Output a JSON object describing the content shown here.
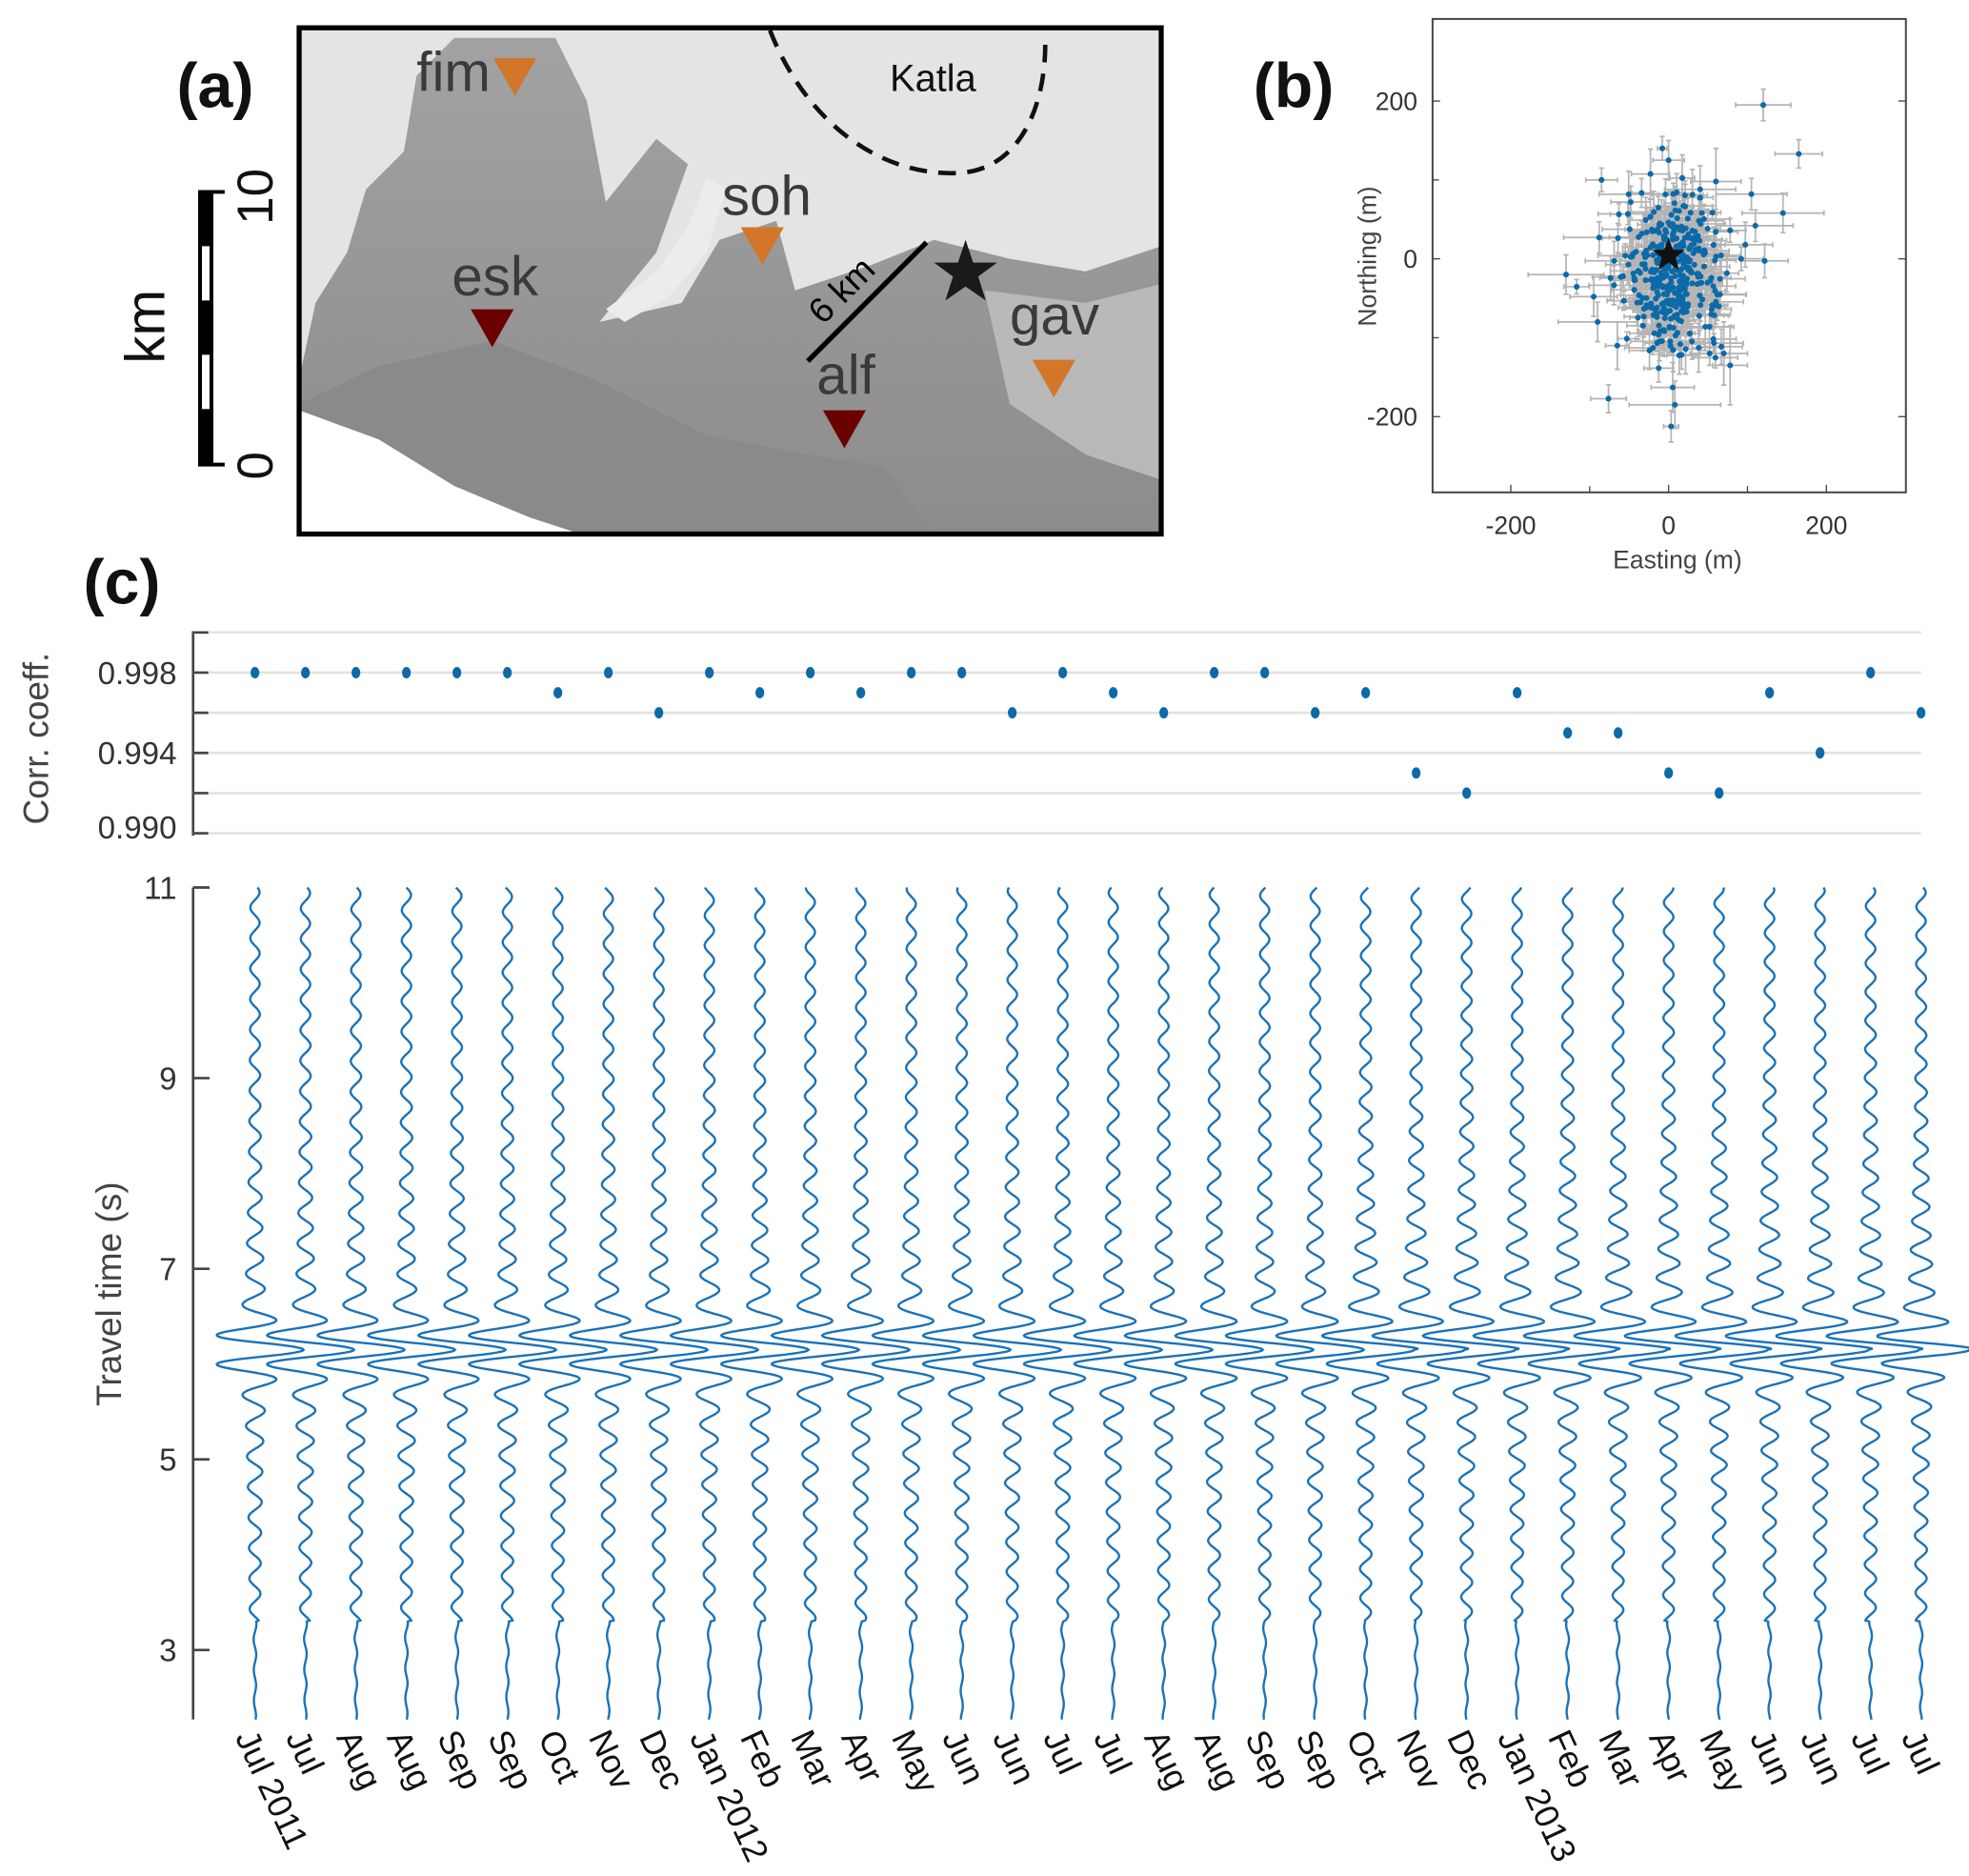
{
  "panels": {
    "a": "(a)",
    "b": "(b)",
    "c": "(c)"
  },
  "map": {
    "scale_bar": {
      "unit": "km",
      "top_label": "10",
      "bottom_label": "0"
    },
    "volcano_label": "Katla",
    "distance_label": "6 km",
    "stations": [
      {
        "name": "fim",
        "color": "#d2772a"
      },
      {
        "name": "soh",
        "color": "#d2772a"
      },
      {
        "name": "esk",
        "color": "#6b0000"
      },
      {
        "name": "alf",
        "color": "#6b0000"
      },
      {
        "name": "gav",
        "color": "#d2772a"
      }
    ]
  },
  "chart_data": [
    {
      "type": "scatter",
      "panel": "b",
      "xlabel": "Easting (m)",
      "ylabel": "Northing (m)",
      "xlim": [
        -300,
        300
      ],
      "ylim": [
        -300,
        300
      ],
      "xticks": [
        "-200",
        "0",
        "200"
      ],
      "yticks": [
        "-200",
        "0",
        "200"
      ],
      "marker_color": "#0b6aa8",
      "errorbar_color": "#b4b4b4",
      "reference_star": [
        0,
        5
      ],
      "cloud": {
        "center": [
          5,
          -20
        ],
        "spread": [
          30,
          45
        ],
        "count": 420
      },
      "points": [
        {
          "x": 120,
          "y": 195,
          "ex": 35,
          "ey": 20
        },
        {
          "x": 165,
          "y": 133,
          "ex": 30,
          "ey": 18
        },
        {
          "x": -85,
          "y": 100,
          "ex": 20,
          "ey": 15
        },
        {
          "x": -8,
          "y": 140,
          "ex": 6,
          "ey": 15
        },
        {
          "x": 0,
          "y": 125,
          "ex": 20,
          "ey": 25
        },
        {
          "x": 105,
          "y": 82,
          "ex": 45,
          "ey": 20
        },
        {
          "x": 145,
          "y": 58,
          "ex": 52,
          "ey": 25
        },
        {
          "x": -130,
          "y": -20,
          "ex": 48,
          "ey": 25
        },
        {
          "x": 8,
          "y": -185,
          "ex": 58,
          "ey": 30
        },
        {
          "x": 92,
          "y": 0,
          "ex": 28,
          "ey": 15
        },
        {
          "x": 78,
          "y": -135,
          "ex": 22,
          "ey": 50
        },
        {
          "x": -65,
          "y": -110,
          "ex": 15,
          "ey": 30
        },
        {
          "x": -95,
          "y": -48,
          "ex": 30,
          "ey": 25
        },
        {
          "x": -90,
          "y": -80,
          "ex": 50,
          "ey": 25
        },
        {
          "x": 60,
          "y": 98,
          "ex": 32,
          "ey": 42
        },
        {
          "x": 110,
          "y": 42,
          "ex": 48,
          "ey": 20
        },
        {
          "x": 78,
          "y": 36,
          "ex": 20,
          "ey": 15
        },
        {
          "x": -88,
          "y": 27,
          "ex": 45,
          "ey": 20
        },
        {
          "x": 52,
          "y": -120,
          "ex": 25,
          "ey": 15
        },
        {
          "x": 70,
          "y": -120,
          "ex": 30,
          "ey": 40
        },
        {
          "x": -48,
          "y": 72,
          "ex": 25,
          "ey": 20
        },
        {
          "x": 40,
          "y": 88,
          "ex": 45,
          "ey": 30
        }
      ]
    },
    {
      "type": "scatter",
      "panel": "c-top",
      "ylabel": "Corr. coeff.",
      "ylim": [
        0.99,
        1.0
      ],
      "yticks": [
        "0.990",
        "0.994",
        "0.998"
      ],
      "grid_values": [
        0.99,
        0.992,
        0.994,
        0.996,
        0.998,
        1.0
      ],
      "marker_color": "#0b6aa8",
      "categories": [
        "Jul 2011",
        "Jul",
        "Aug",
        "Aug",
        "Sep",
        "Sep",
        "Oct",
        "Nov",
        "Dec",
        "Jan 2012",
        "Feb",
        "Mar",
        "Apr",
        "May",
        "Jun",
        "Jun",
        "Jul",
        "Jul",
        "Aug",
        "Aug",
        "Sep",
        "Sep",
        "Oct",
        "Nov",
        "Dec",
        "Jan 2013",
        "Feb",
        "Mar",
        "Apr",
        "May",
        "Jun",
        "Jun",
        "Jul",
        "Jul"
      ],
      "values": [
        0.998,
        0.998,
        0.998,
        0.998,
        0.998,
        0.998,
        0.997,
        0.998,
        0.996,
        0.998,
        0.997,
        0.998,
        0.997,
        0.998,
        0.998,
        0.996,
        0.998,
        0.997,
        0.996,
        0.998,
        0.998,
        0.996,
        0.997,
        0.993,
        0.992,
        0.997,
        0.995,
        0.995,
        0.993,
        0.992,
        0.997,
        0.994,
        0.998,
        0.996
      ]
    },
    {
      "type": "line",
      "panel": "c-bottom",
      "ylabel": "Travel time (s)",
      "ylim": [
        2.27,
        11
      ],
      "yticks": [
        "3",
        "5",
        "7",
        "9",
        "11"
      ],
      "line_color": "#1a72b8",
      "trace_count": 34,
      "peak_time_s": 6.15,
      "dominant_period_s": 0.32
    }
  ]
}
